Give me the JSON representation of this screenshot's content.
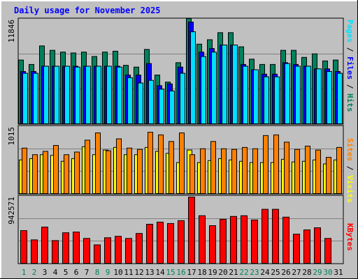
{
  "title": "Daily usage for November 2025",
  "colors": {
    "frame_bg": "#C0C0C0",
    "grid": "#808080",
    "hits": "#00805C",
    "files": "#0000FF",
    "pages": "#00E0FF",
    "visits": "#FF8000",
    "sites": "#FFFF00",
    "kbytes": "#FF0000",
    "title_color": "#0000FF",
    "day_weekday": "#000000",
    "day_weekend": "#00805C"
  },
  "chart_data": [
    {
      "type": "bar",
      "panel": "hits-files-pages",
      "ylabel_max": "11846",
      "ymax": 11846,
      "legend": [
        "Pages",
        "Files",
        "Hits"
      ],
      "series": [
        {
          "name": "Hits",
          "values": [
            7300,
            6800,
            8900,
            8400,
            8200,
            8100,
            8200,
            7700,
            8200,
            8300,
            6700,
            6500,
            8500,
            5600,
            4800,
            7000,
            12000,
            9100,
            9600,
            10400,
            10400,
            8800,
            7400,
            6800,
            6800,
            8400,
            8400,
            7600,
            8000,
            7200,
            7300
          ]
        },
        {
          "name": "Files",
          "values": [
            6000,
            6000,
            6600,
            6600,
            6600,
            6600,
            6600,
            6600,
            6600,
            6600,
            5600,
            5600,
            6900,
            4400,
            4600,
            6500,
            11600,
            8200,
            8600,
            9000,
            9000,
            6800,
            6200,
            5700,
            5700,
            7000,
            6800,
            6600,
            6300,
            6300,
            6000
          ]
        },
        {
          "name": "Pages",
          "values": [
            5800,
            5800,
            6600,
            6600,
            6600,
            6500,
            6600,
            6600,
            6600,
            6500,
            5300,
            4700,
            5000,
            4000,
            3800,
            5800,
            10500,
            7700,
            8200,
            9000,
            9000,
            6600,
            6200,
            5400,
            5400,
            6900,
            6600,
            6600,
            6300,
            6000,
            5800
          ]
        }
      ]
    },
    {
      "type": "bar",
      "panel": "visits-sites",
      "ylabel_max": "1015",
      "ymax": 1015,
      "legend": [
        "Sites",
        "Visits"
      ],
      "series": [
        {
          "name": "Visits",
          "values": [
            700,
            600,
            650,
            740,
            600,
            640,
            820,
            930,
            660,
            840,
            700,
            680,
            940,
            900,
            800,
            930,
            600,
            690,
            800,
            690,
            680,
            710,
            690,
            890,
            900,
            790,
            680,
            730,
            670,
            560,
            710
          ]
        },
        {
          "name": "Sites",
          "values": [
            520,
            540,
            600,
            590,
            500,
            540,
            720,
            600,
            670,
            710,
            600,
            600,
            710,
            650,
            620,
            480,
            670,
            480,
            510,
            540,
            520,
            500,
            480,
            480,
            480,
            530,
            490,
            500,
            520,
            460,
            520
          ]
        }
      ]
    },
    {
      "type": "bar",
      "panel": "kbytes",
      "ylabel_max": "942571",
      "ymax": 942571,
      "legend": [
        "KBytes"
      ],
      "series": [
        {
          "name": "KBytes",
          "values": [
            470000,
            340000,
            520000,
            330000,
            440000,
            450000,
            360000,
            270000,
            370000,
            390000,
            360000,
            430000,
            560000,
            590000,
            570000,
            610000,
            942571,
            680000,
            540000,
            630000,
            670000,
            680000,
            620000,
            770000,
            770000,
            660000,
            420000,
            480000,
            510000,
            360000,
            0
          ]
        }
      ]
    }
  ],
  "days": [
    "1",
    "2",
    "3",
    "4",
    "5",
    "6",
    "7",
    "8",
    "9",
    "10",
    "11",
    "12",
    "13",
    "14",
    "15",
    "16",
    "17",
    "18",
    "19",
    "20",
    "21",
    "22",
    "23",
    "24",
    "25",
    "26",
    "27",
    "28",
    "29",
    "30",
    "31"
  ],
  "weekend_days": [
    1,
    2,
    8,
    9,
    15,
    16,
    22,
    23,
    29,
    30
  ]
}
